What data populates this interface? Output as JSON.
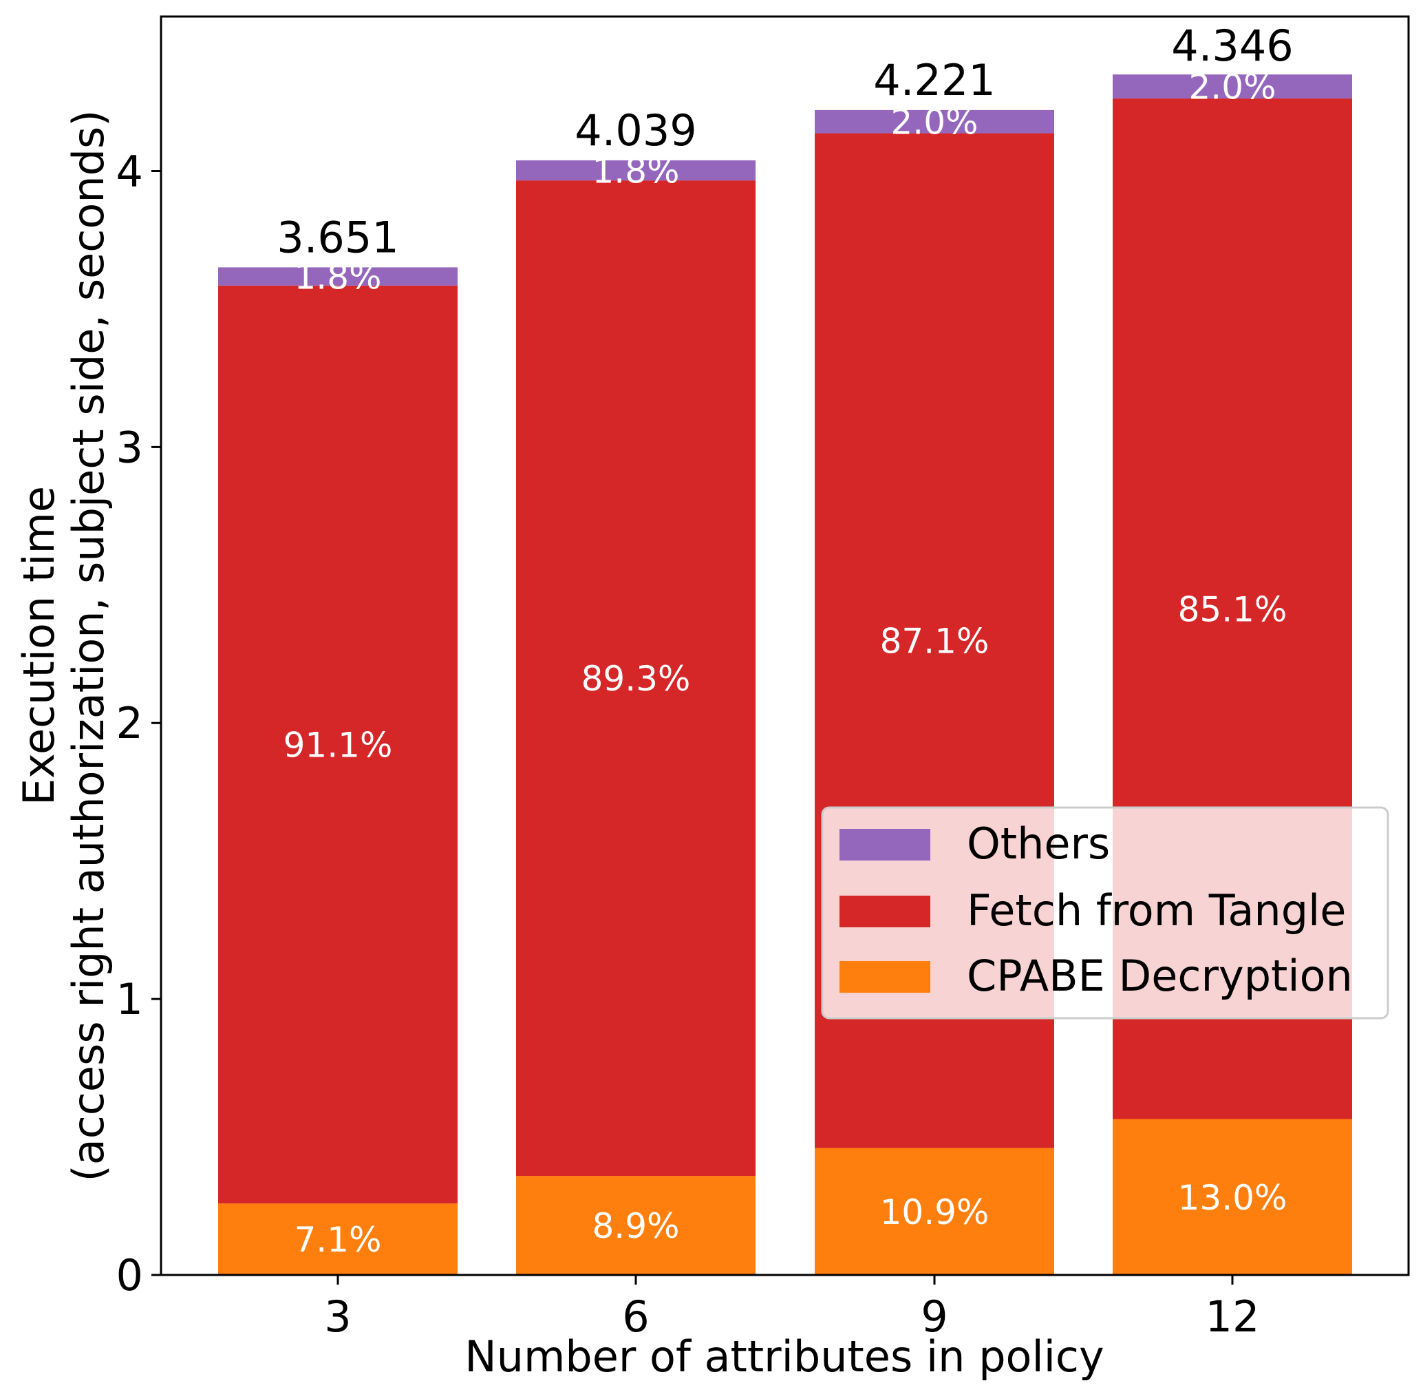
{
  "chart_data": {
    "type": "bar",
    "stacked": true,
    "categories": [
      "3",
      "6",
      "9",
      "12"
    ],
    "totals": [
      3.651,
      4.039,
      4.221,
      4.346
    ],
    "total_labels": [
      "3.651",
      "4.039",
      "4.221",
      "4.346"
    ],
    "series": [
      {
        "name": "CPABE Decryption",
        "color": "#ff7f0e",
        "values": [
          0.259,
          0.359,
          0.46,
          0.565
        ],
        "percent_labels": [
          "7.1%",
          "8.9%",
          "10.9%",
          "13.0%"
        ]
      },
      {
        "name": "Fetch from Tangle",
        "color": "#d62728",
        "values": [
          3.326,
          3.607,
          3.677,
          3.698
        ],
        "percent_labels": [
          "91.1%",
          "89.3%",
          "87.1%",
          "85.1%"
        ]
      },
      {
        "name": "Others",
        "color": "#9467bd",
        "values": [
          0.066,
          0.073,
          0.084,
          0.087
        ],
        "percent_labels": [
          "1.8%",
          "1.8%",
          "2.0%",
          "2.0%"
        ]
      }
    ],
    "legend_order": [
      "Others",
      "Fetch from Tangle",
      "CPABE Decryption"
    ],
    "legend_position": "center-right",
    "xlabel": "Number of attributes in policy",
    "ylabel_line1": "Execution time",
    "ylabel_line2": "(access right authorization, subject side, seconds)",
    "ylim": [
      0,
      4.56
    ],
    "yticks": [
      0,
      1,
      2,
      3,
      4
    ],
    "ytick_labels": [
      "0",
      "1",
      "2",
      "3",
      "4"
    ],
    "grid": false
  }
}
